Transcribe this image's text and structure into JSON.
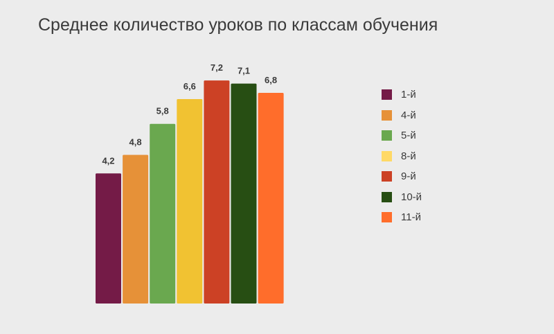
{
  "chart_data": {
    "type": "bar",
    "title": "Среднее количество уроков по классам обучения",
    "categories": [
      "1-й",
      "4-й",
      "5-й",
      "8-й",
      "9-й",
      "10-й",
      "11-й"
    ],
    "values": [
      4.2,
      4.8,
      5.8,
      6.6,
      7.2,
      7.1,
      6.8
    ],
    "value_labels": [
      "4,2",
      "4,8",
      "5,8",
      "6,6",
      "7,2",
      "7,1",
      "6,8"
    ],
    "colors": [
      "#741b47",
      "#e69138",
      "#6aa84f",
      "#f1c232",
      "#cc4125",
      "#274e13",
      "#ff6d2b"
    ],
    "legend_colors": [
      "#741b47",
      "#e69138",
      "#6aa84f",
      "#ffd966",
      "#cc4125",
      "#274e13",
      "#ff6d2b"
    ],
    "xlabel": "",
    "ylabel": "",
    "grid": false,
    "legend_position": "right"
  }
}
